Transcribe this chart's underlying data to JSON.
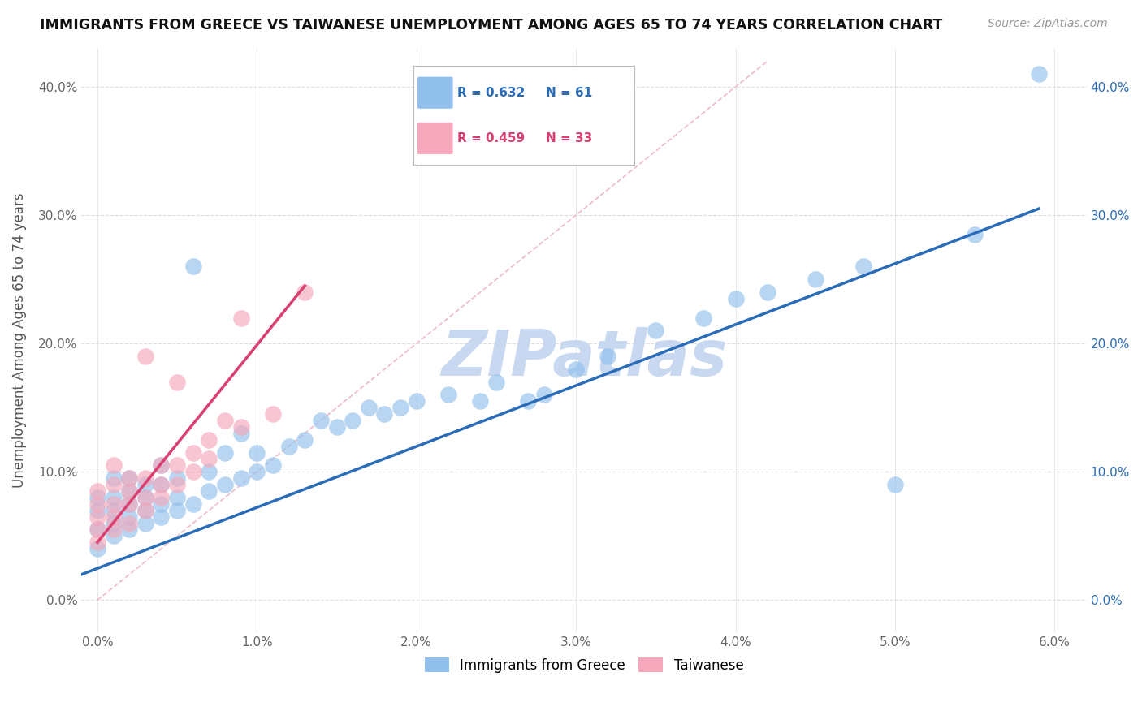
{
  "title": "IMMIGRANTS FROM GREECE VS TAIWANESE UNEMPLOYMENT AMONG AGES 65 TO 74 YEARS CORRELATION CHART",
  "source": "Source: ZipAtlas.com",
  "ylabel": "Unemployment Among Ages 65 to 74 years",
  "legend_label_blue": "Immigrants from Greece",
  "legend_label_pink": "Taiwanese",
  "R_blue": 0.632,
  "N_blue": 61,
  "R_pink": 0.459,
  "N_pink": 33,
  "xlim": [
    -0.001,
    0.062
  ],
  "ylim": [
    -0.025,
    0.43
  ],
  "xticks": [
    0.0,
    0.01,
    0.02,
    0.03,
    0.04,
    0.05,
    0.06
  ],
  "xticklabels": [
    "0.0%",
    "1.0%",
    "2.0%",
    "3.0%",
    "4.0%",
    "5.0%",
    "6.0%"
  ],
  "yticks": [
    0.0,
    0.1,
    0.2,
    0.3,
    0.4
  ],
  "yticklabels": [
    "0.0%",
    "10.0%",
    "20.0%",
    "30.0%",
    "40.0%"
  ],
  "color_blue": "#92C0EC",
  "color_pink": "#F5A8BB",
  "line_color_blue": "#2B6CB8",
  "line_color_pink": "#D94070",
  "ref_line_color": "#EEBAC8",
  "watermark": "ZIPatlas",
  "watermark_color": "#C8D8F0",
  "blue_scatter_x": [
    0.0,
    0.0,
    0.0,
    0.0,
    0.001,
    0.001,
    0.001,
    0.001,
    0.001,
    0.002,
    0.002,
    0.002,
    0.002,
    0.002,
    0.003,
    0.003,
    0.003,
    0.003,
    0.004,
    0.004,
    0.004,
    0.004,
    0.005,
    0.005,
    0.005,
    0.006,
    0.006,
    0.007,
    0.007,
    0.008,
    0.008,
    0.009,
    0.009,
    0.01,
    0.01,
    0.011,
    0.012,
    0.013,
    0.014,
    0.015,
    0.016,
    0.017,
    0.018,
    0.019,
    0.02,
    0.022,
    0.024,
    0.025,
    0.027,
    0.028,
    0.03,
    0.032,
    0.035,
    0.038,
    0.04,
    0.042,
    0.045,
    0.048,
    0.05,
    0.055,
    0.059
  ],
  "blue_scatter_y": [
    0.04,
    0.055,
    0.07,
    0.08,
    0.05,
    0.06,
    0.07,
    0.08,
    0.095,
    0.055,
    0.065,
    0.075,
    0.085,
    0.095,
    0.06,
    0.07,
    0.08,
    0.09,
    0.065,
    0.075,
    0.09,
    0.105,
    0.07,
    0.08,
    0.095,
    0.26,
    0.075,
    0.085,
    0.1,
    0.09,
    0.115,
    0.095,
    0.13,
    0.1,
    0.115,
    0.105,
    0.12,
    0.125,
    0.14,
    0.135,
    0.14,
    0.15,
    0.145,
    0.15,
    0.155,
    0.16,
    0.155,
    0.17,
    0.155,
    0.16,
    0.18,
    0.19,
    0.21,
    0.22,
    0.235,
    0.24,
    0.25,
    0.26,
    0.09,
    0.285,
    0.41
  ],
  "pink_scatter_x": [
    0.0,
    0.0,
    0.0,
    0.0,
    0.0,
    0.001,
    0.001,
    0.001,
    0.001,
    0.001,
    0.002,
    0.002,
    0.002,
    0.002,
    0.003,
    0.003,
    0.003,
    0.003,
    0.004,
    0.004,
    0.004,
    0.005,
    0.005,
    0.005,
    0.006,
    0.006,
    0.007,
    0.007,
    0.008,
    0.009,
    0.009,
    0.011,
    0.013
  ],
  "pink_scatter_y": [
    0.045,
    0.055,
    0.065,
    0.075,
    0.085,
    0.055,
    0.065,
    0.075,
    0.09,
    0.105,
    0.06,
    0.075,
    0.085,
    0.095,
    0.07,
    0.08,
    0.095,
    0.19,
    0.08,
    0.09,
    0.105,
    0.09,
    0.105,
    0.17,
    0.1,
    0.115,
    0.11,
    0.125,
    0.14,
    0.135,
    0.22,
    0.145,
    0.24
  ],
  "blue_line_x": [
    -0.001,
    0.059
  ],
  "blue_line_y": [
    0.02,
    0.305
  ],
  "pink_line_x": [
    0.0,
    0.013
  ],
  "pink_line_y": [
    0.045,
    0.245
  ],
  "ref_line_x": [
    0.0,
    0.042
  ],
  "ref_line_y": [
    0.0,
    0.42
  ]
}
